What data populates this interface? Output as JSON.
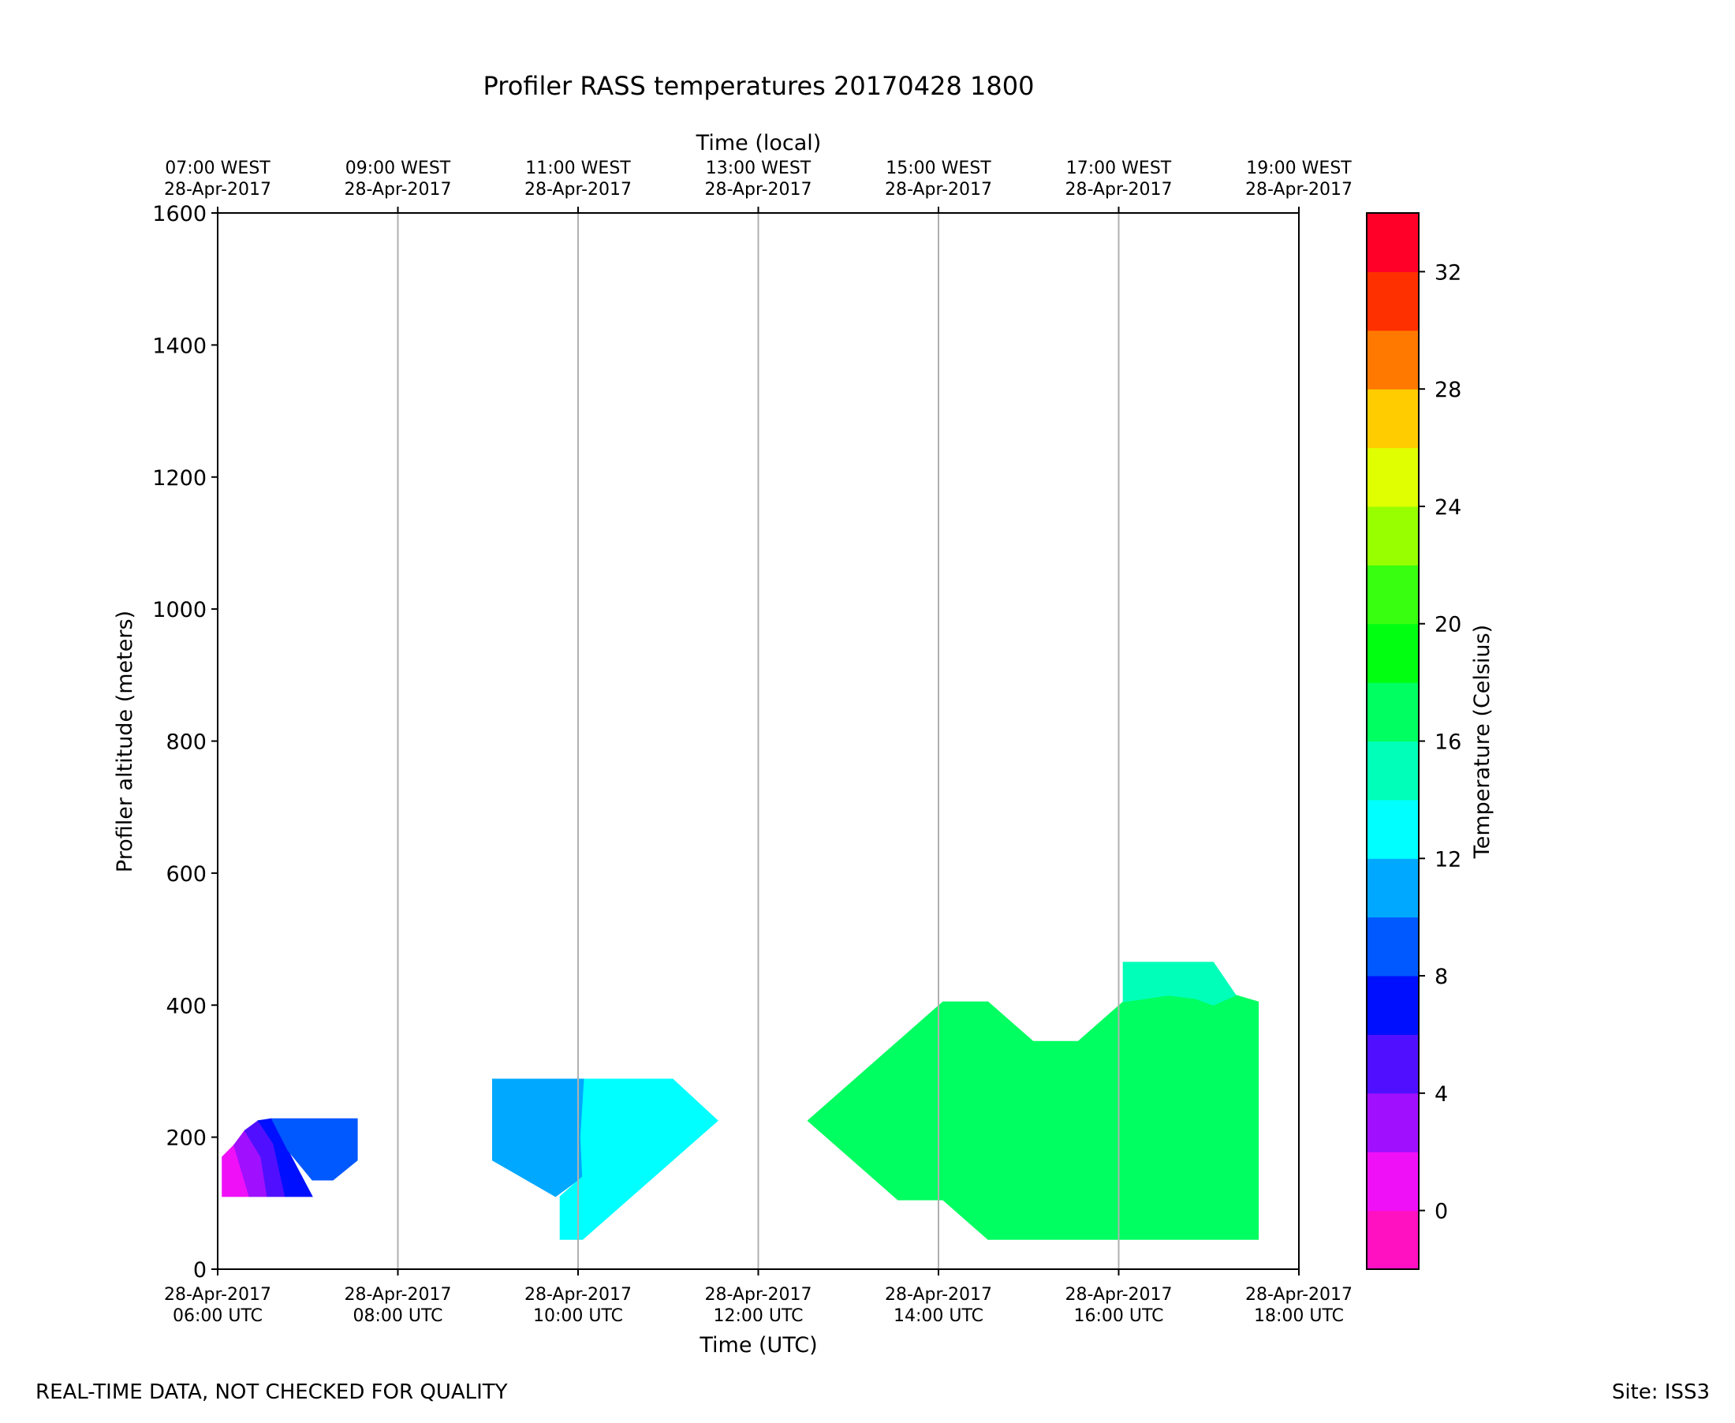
{
  "chart_data": {
    "type": "heatmap",
    "title": "Profiler RASS temperatures 20170428 1800",
    "xlabel": "Time (UTC)",
    "top_xlabel": "Time (local)",
    "ylabel": "Profiler altitude (meters)",
    "colorbar_label": "Temperature (Celsius)",
    "xlim_hours": [
      6,
      18
    ],
    "ylim": [
      0,
      1600
    ],
    "grid": "vertical",
    "x_ticks": [
      {
        "hour": 6,
        "line1": "28-Apr-2017",
        "line2": "06:00 UTC"
      },
      {
        "hour": 8,
        "line1": "28-Apr-2017",
        "line2": "08:00 UTC"
      },
      {
        "hour": 10,
        "line1": "28-Apr-2017",
        "line2": "10:00 UTC"
      },
      {
        "hour": 12,
        "line1": "28-Apr-2017",
        "line2": "12:00 UTC"
      },
      {
        "hour": 14,
        "line1": "28-Apr-2017",
        "line2": "14:00 UTC"
      },
      {
        "hour": 16,
        "line1": "28-Apr-2017",
        "line2": "16:00 UTC"
      },
      {
        "hour": 18,
        "line1": "28-Apr-2017",
        "line2": "18:00 UTC"
      }
    ],
    "top_x_ticks": [
      {
        "hour": 6,
        "line1": "07:00 WEST",
        "line2": "28-Apr-2017"
      },
      {
        "hour": 8,
        "line1": "09:00 WEST",
        "line2": "28-Apr-2017"
      },
      {
        "hour": 10,
        "line1": "11:00 WEST",
        "line2": "28-Apr-2017"
      },
      {
        "hour": 12,
        "line1": "13:00 WEST",
        "line2": "28-Apr-2017"
      },
      {
        "hour": 14,
        "line1": "15:00 WEST",
        "line2": "28-Apr-2017"
      },
      {
        "hour": 16,
        "line1": "17:00 WEST",
        "line2": "28-Apr-2017"
      },
      {
        "hour": 18,
        "line1": "19:00 WEST",
        "line2": "28-Apr-2017"
      }
    ],
    "y_ticks": [
      0,
      200,
      400,
      600,
      800,
      1000,
      1200,
      1400,
      1600
    ],
    "colorbar": {
      "min": -2,
      "max": 34,
      "ticks": [
        0,
        4,
        8,
        12,
        16,
        20,
        24,
        28,
        32
      ],
      "bins": [
        {
          "from": -2,
          "to": 0,
          "color": "#ff10c0"
        },
        {
          "from": 0,
          "to": 2,
          "color": "#f010f8"
        },
        {
          "from": 2,
          "to": 4,
          "color": "#a010ff"
        },
        {
          "from": 4,
          "to": 6,
          "color": "#5010ff"
        },
        {
          "from": 6,
          "to": 8,
          "color": "#0010ff"
        },
        {
          "from": 8,
          "to": 10,
          "color": "#0058ff"
        },
        {
          "from": 10,
          "to": 12,
          "color": "#00a8ff"
        },
        {
          "from": 12,
          "to": 14,
          "color": "#00ffff"
        },
        {
          "from": 14,
          "to": 16,
          "color": "#00ffb8"
        },
        {
          "from": 16,
          "to": 18,
          "color": "#00ff60"
        },
        {
          "from": 18,
          "to": 20,
          "color": "#00ff10"
        },
        {
          "from": 20,
          "to": 22,
          "color": "#38ff10"
        },
        {
          "from": 22,
          "to": 24,
          "color": "#98ff00"
        },
        {
          "from": 24,
          "to": 26,
          "color": "#e0ff00"
        },
        {
          "from": 26,
          "to": 28,
          "color": "#ffcc00"
        },
        {
          "from": 28,
          "to": 30,
          "color": "#ff7800"
        },
        {
          "from": 30,
          "to": 32,
          "color": "#ff3000"
        },
        {
          "from": 32,
          "to": 34,
          "color": "#ff0028"
        }
      ]
    },
    "regions": [
      {
        "name": "region-0to2C",
        "temp_bin": [
          0,
          2
        ],
        "color": "#f010f8",
        "points": [
          [
            6.05,
            110
          ],
          [
            6.05,
            170
          ],
          [
            6.18,
            188
          ],
          [
            6.35,
            110
          ]
        ]
      },
      {
        "name": "region-2to4C",
        "temp_bin": [
          2,
          4
        ],
        "color": "#a010ff",
        "points": [
          [
            6.18,
            188
          ],
          [
            6.3,
            210
          ],
          [
            6.48,
            170
          ],
          [
            6.55,
            110
          ],
          [
            6.35,
            110
          ]
        ]
      },
      {
        "name": "region-4to6C",
        "temp_bin": [
          4,
          6
        ],
        "color": "#5010ff",
        "points": [
          [
            6.3,
            210
          ],
          [
            6.45,
            225
          ],
          [
            6.62,
            190
          ],
          [
            6.75,
            110
          ],
          [
            6.55,
            110
          ],
          [
            6.48,
            170
          ]
        ]
      },
      {
        "name": "region-6to8C",
        "temp_bin": [
          6,
          8
        ],
        "color": "#0010ff",
        "points": [
          [
            6.45,
            225
          ],
          [
            6.6,
            228
          ],
          [
            6.78,
            180
          ],
          [
            7.05,
            110
          ],
          [
            6.75,
            110
          ],
          [
            6.62,
            190
          ]
        ]
      },
      {
        "name": "region-8to10C",
        "temp_bin": [
          8,
          10
        ],
        "color": "#0058ff",
        "points": [
          [
            6.6,
            228
          ],
          [
            7.55,
            228
          ],
          [
            7.55,
            165
          ],
          [
            7.28,
            135
          ],
          [
            7.05,
            135
          ],
          [
            6.78,
            180
          ]
        ]
      },
      {
        "name": "region-10to12C",
        "temp_bin": [
          10,
          12
        ],
        "color": "#00a8ff",
        "points": [
          [
            9.05,
            288
          ],
          [
            10.07,
            288
          ],
          [
            10.03,
            200
          ],
          [
            10.05,
            140
          ],
          [
            9.75,
            110
          ],
          [
            9.05,
            165
          ]
        ]
      },
      {
        "name": "region-12to14C",
        "temp_bin": [
          12,
          14
        ],
        "color": "#00ffff",
        "points": [
          [
            10.07,
            288
          ],
          [
            11.05,
            288
          ],
          [
            11.55,
            225
          ],
          [
            10.05,
            45
          ],
          [
            9.8,
            45
          ],
          [
            9.8,
            110
          ],
          [
            10.05,
            140
          ],
          [
            10.03,
            200
          ]
        ]
      },
      {
        "name": "region-16to18C",
        "temp_bin": [
          16,
          18
        ],
        "color": "#00ff60",
        "points": [
          [
            12.55,
            225
          ],
          [
            14.05,
            405
          ],
          [
            14.55,
            405
          ],
          [
            15.05,
            345
          ],
          [
            15.55,
            345
          ],
          [
            16.05,
            405
          ],
          [
            16.55,
            415
          ],
          [
            16.85,
            410
          ],
          [
            17.05,
            400
          ],
          [
            17.3,
            415
          ],
          [
            17.55,
            405
          ],
          [
            17.55,
            45
          ],
          [
            14.55,
            45
          ],
          [
            14.05,
            105
          ],
          [
            13.55,
            105
          ]
        ]
      },
      {
        "name": "region-14to16C",
        "temp_bin": [
          14,
          16
        ],
        "color": "#00ffb8",
        "points": [
          [
            16.05,
            465
          ],
          [
            17.05,
            465
          ],
          [
            17.3,
            415
          ],
          [
            17.05,
            400
          ],
          [
            16.85,
            410
          ],
          [
            16.55,
            415
          ],
          [
            16.05,
            405
          ]
        ]
      }
    ]
  },
  "footer": {
    "left_note": "REAL-TIME DATA, NOT CHECKED FOR QUALITY",
    "site": "Site: ISS3"
  }
}
